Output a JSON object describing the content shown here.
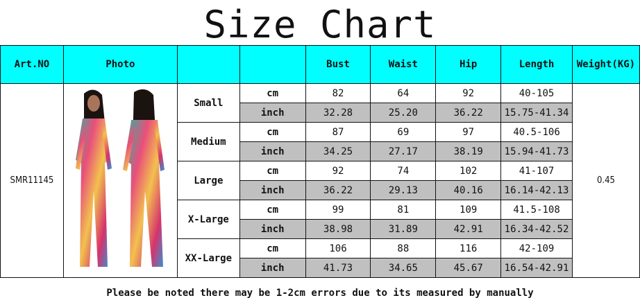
{
  "title": "Size Chart",
  "headers": {
    "art_no": "Art.NO",
    "photo": "Photo",
    "size": "",
    "unit": "",
    "bust": "Bust",
    "waist": "Waist",
    "hip": "Hip",
    "length": "Length",
    "weight": "Weight(KG)"
  },
  "art_no": "SMR11145",
  "weight": "0.45",
  "colors": {
    "header_bg": "#00ffff",
    "inch_row_bg": "#c0c0c0"
  },
  "sizes": [
    {
      "name": "Small",
      "cm": {
        "unit": "cm",
        "bust": "82",
        "waist": "64",
        "hip": "92",
        "length": "40-105"
      },
      "inch": {
        "unit": "inch",
        "bust": "32.28",
        "waist": "25.20",
        "hip": "36.22",
        "length": "15.75-41.34"
      }
    },
    {
      "name": "Medium",
      "cm": {
        "unit": "cm",
        "bust": "87",
        "waist": "69",
        "hip": "97",
        "length": "40.5-106"
      },
      "inch": {
        "unit": "inch",
        "bust": "34.25",
        "waist": "27.17",
        "hip": "38.19",
        "length": "15.94-41.73"
      }
    },
    {
      "name": "Large",
      "cm": {
        "unit": "cm",
        "bust": "92",
        "waist": "74",
        "hip": "102",
        "length": "41-107"
      },
      "inch": {
        "unit": "inch",
        "bust": "36.22",
        "waist": "29.13",
        "hip": "40.16",
        "length": "16.14-42.13"
      }
    },
    {
      "name": "X-Large",
      "cm": {
        "unit": "cm",
        "bust": "99",
        "waist": "81",
        "hip": "109",
        "length": "41.5-108"
      },
      "inch": {
        "unit": "inch",
        "bust": "38.98",
        "waist": "31.89",
        "hip": "42.91",
        "length": "16.34-42.52"
      }
    },
    {
      "name": "XX-Large",
      "cm": {
        "unit": "cm",
        "bust": "106",
        "waist": "88",
        "hip": "116",
        "length": "42-109"
      },
      "inch": {
        "unit": "inch",
        "bust": "41.73",
        "waist": "34.65",
        "hip": "45.67",
        "length": "16.54-42.91"
      }
    }
  ],
  "footer": "Please be noted there may be 1-2cm errors due to its measured by manually"
}
